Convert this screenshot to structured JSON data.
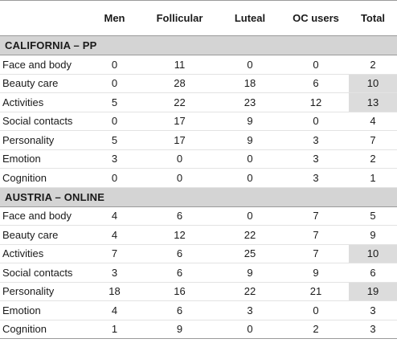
{
  "headers": [
    "",
    "Men",
    "Follicular",
    "Luteal",
    "OC users",
    "Total"
  ],
  "sections": [
    {
      "title": "CALIFORNIA – PP",
      "rows": [
        {
          "label": "Face and body",
          "values": [
            "0",
            "11",
            "0",
            "0",
            "2"
          ],
          "highlight_total": false
        },
        {
          "label": "Beauty care",
          "values": [
            "0",
            "28",
            "18",
            "6",
            "10"
          ],
          "highlight_total": true
        },
        {
          "label": "Activities",
          "values": [
            "5",
            "22",
            "23",
            "12",
            "13"
          ],
          "highlight_total": true
        },
        {
          "label": "Social contacts",
          "values": [
            "0",
            "17",
            "9",
            "0",
            "4"
          ],
          "highlight_total": false
        },
        {
          "label": "Personality",
          "values": [
            "5",
            "17",
            "9",
            "3",
            "7"
          ],
          "highlight_total": false
        },
        {
          "label": "Emotion",
          "values": [
            "3",
            "0",
            "0",
            "3",
            "2"
          ],
          "highlight_total": false
        },
        {
          "label": "Cognition",
          "values": [
            "0",
            "0",
            "0",
            "3",
            "1"
          ],
          "highlight_total": false
        }
      ]
    },
    {
      "title": "AUSTRIA – ONLINE",
      "rows": [
        {
          "label": "Face and body",
          "values": [
            "4",
            "6",
            "0",
            "7",
            "5"
          ],
          "highlight_total": false
        },
        {
          "label": "Beauty care",
          "values": [
            "4",
            "12",
            "22",
            "7",
            "9"
          ],
          "highlight_total": false
        },
        {
          "label": "Activities",
          "values": [
            "7",
            "6",
            "25",
            "7",
            "10"
          ],
          "highlight_total": true
        },
        {
          "label": "Social contacts",
          "values": [
            "3",
            "6",
            "9",
            "9",
            "6"
          ],
          "highlight_total": false
        },
        {
          "label": "Personality",
          "values": [
            "18",
            "16",
            "22",
            "21",
            "19"
          ],
          "highlight_total": true
        },
        {
          "label": "Emotion",
          "values": [
            "4",
            "6",
            "3",
            "0",
            "3"
          ],
          "highlight_total": false
        },
        {
          "label": "Cognition",
          "values": [
            "1",
            "9",
            "0",
            "2",
            "3"
          ],
          "highlight_total": false
        }
      ]
    }
  ],
  "colors": {
    "section_bg": "#d4d4d4",
    "highlight_bg": "#dcdcdc"
  }
}
